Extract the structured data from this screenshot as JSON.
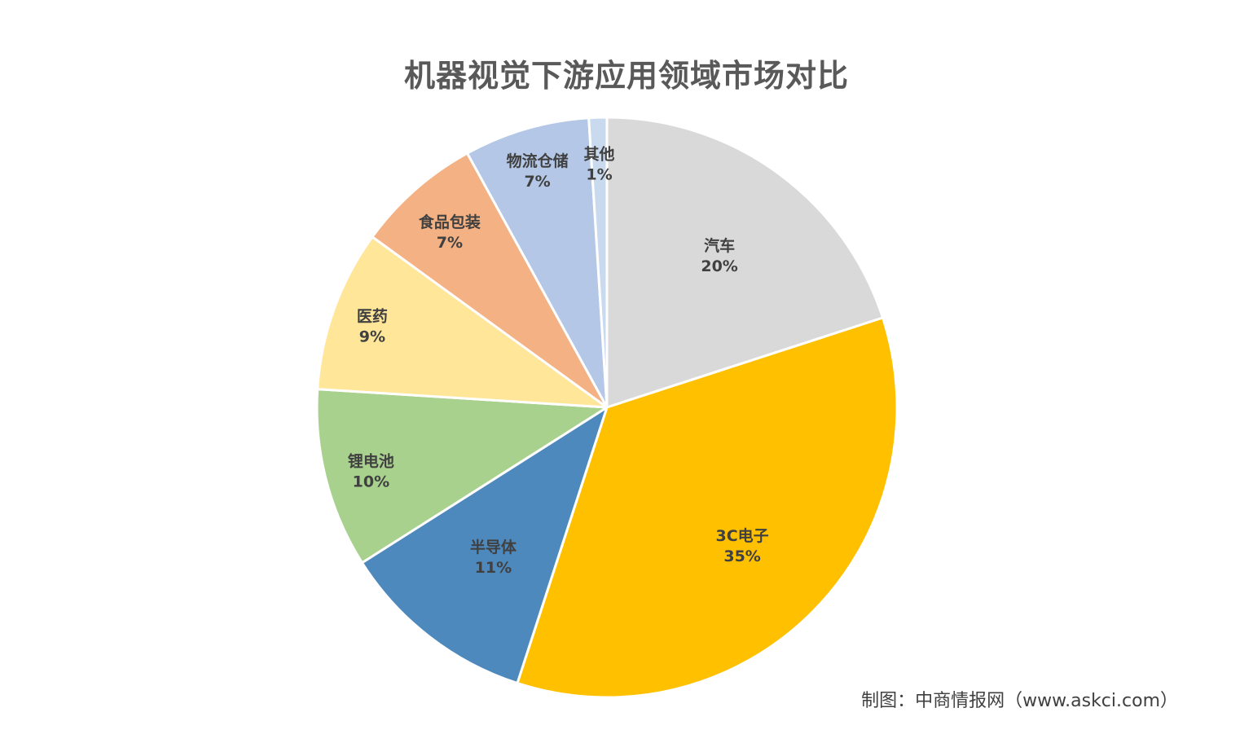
{
  "chart_data": {
    "type": "pie",
    "title": "机器视觉下游应用领域市场对比",
    "slices": [
      {
        "label": "汽车",
        "value_label": "20%",
        "value": 20,
        "color": "#D9D9D9"
      },
      {
        "label": "3C电子",
        "value_label": "35%",
        "value": 35,
        "color": "#FFC000"
      },
      {
        "label": "半导体",
        "value_label": "11%",
        "value": 11,
        "color": "#4E89BE"
      },
      {
        "label": "锂电池",
        "value_label": "10%",
        "value": 10,
        "color": "#A9D18E"
      },
      {
        "label": "医药",
        "value_label": "9%",
        "value": 9,
        "color": "#FFE699"
      },
      {
        "label": "食品包装",
        "value_label": "7%",
        "value": 7,
        "color": "#F4B183"
      },
      {
        "label": "物流仓储",
        "value_label": "7%",
        "value": 7,
        "color": "#B4C7E7"
      },
      {
        "label": "其他",
        "value_label": "1%",
        "value": 1,
        "color": "#C9D9EE"
      }
    ],
    "start": "12 o'clock, clockwise",
    "legend": "none, labels inside slices"
  },
  "footer": {
    "source": "制图：中商情报网（www.askci.com）"
  }
}
